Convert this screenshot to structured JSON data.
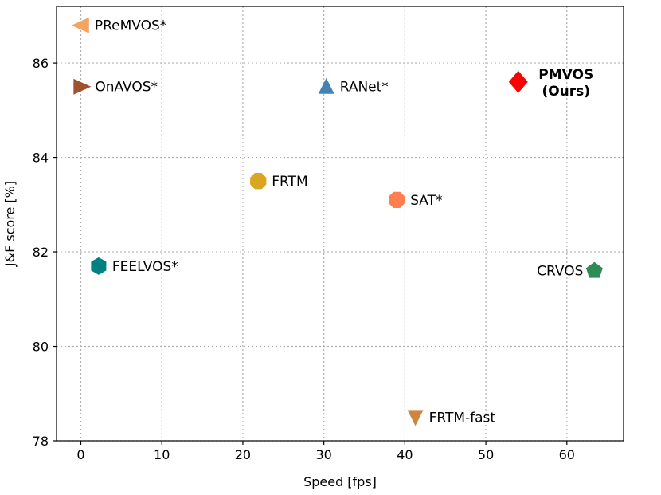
{
  "chart_data": {
    "type": "scatter",
    "title": "",
    "xlabel": "Speed [fps]",
    "ylabel": "J&F score [%]",
    "xlim": [
      -3,
      67
    ],
    "ylim": [
      78,
      87.2
    ],
    "xticks": [
      0,
      10,
      20,
      30,
      40,
      50,
      60
    ],
    "yticks": [
      78,
      80,
      82,
      84,
      86
    ],
    "grid": true,
    "points": [
      {
        "name": "PReMVOS*",
        "label_lines": [
          "PReMVOS*"
        ],
        "x": 0.03,
        "y": 86.8,
        "marker": "triangle-left",
        "color": "#f4a460",
        "bold": false,
        "label_side": "right"
      },
      {
        "name": "OnAVOS*",
        "label_lines": [
          "OnAVOS*"
        ],
        "x": 0.08,
        "y": 85.5,
        "marker": "triangle-right",
        "color": "#a0522d",
        "bold": false,
        "label_side": "right"
      },
      {
        "name": "RANet*",
        "label_lines": [
          "RANet*"
        ],
        "x": 30.3,
        "y": 85.5,
        "marker": "triangle-up",
        "color": "#4682b4",
        "bold": false,
        "label_side": "right"
      },
      {
        "name": "PMVOS (Ours)",
        "label_lines": [
          "PMVOS",
          "(Ours)"
        ],
        "x": 54.0,
        "y": 85.6,
        "marker": "diamond",
        "color": "#ff0000",
        "bold": true,
        "label_side": "right"
      },
      {
        "name": "FRTM",
        "label_lines": [
          "FRTM"
        ],
        "x": 21.9,
        "y": 83.5,
        "marker": "octagon",
        "color": "#daa520",
        "bold": false,
        "label_side": "right"
      },
      {
        "name": "SAT*",
        "label_lines": [
          "SAT*"
        ],
        "x": 39.0,
        "y": 83.1,
        "marker": "octagon",
        "color": "#ff7f50",
        "bold": false,
        "label_side": "right"
      },
      {
        "name": "FEELVOS*",
        "label_lines": [
          "FEELVOS*"
        ],
        "x": 2.2,
        "y": 81.7,
        "marker": "hexagon",
        "color": "#008080",
        "bold": false,
        "label_side": "right"
      },
      {
        "name": "CRVOS",
        "label_lines": [
          "CRVOS"
        ],
        "x": 63.4,
        "y": 81.6,
        "marker": "pentagon",
        "color": "#2e8b57",
        "bold": false,
        "label_side": "left"
      },
      {
        "name": "FRTM-fast",
        "label_lines": [
          "FRTM-fast"
        ],
        "x": 41.3,
        "y": 78.5,
        "marker": "triangle-down",
        "color": "#cd853f",
        "bold": false,
        "label_side": "right"
      }
    ]
  }
}
